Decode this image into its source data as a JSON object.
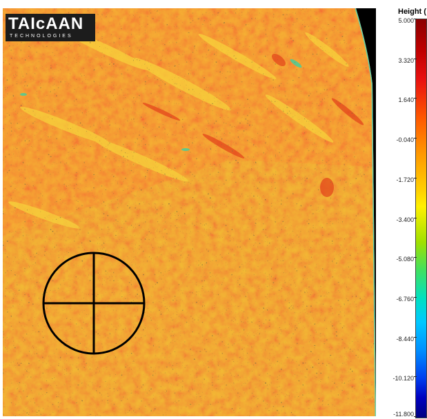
{
  "logo": {
    "brand": "TAIcAAN",
    "sub": "TECHNOLOGIES"
  },
  "legend": {
    "title": "Height (",
    "ticks": [
      "5.000",
      "3.320",
      "1.640",
      "-0.040",
      "-1.720",
      "-3.400",
      "-5.080",
      "-6.760",
      "-8.440",
      "-10.120",
      "-11.800"
    ]
  },
  "colors": {
    "surface_high": "#e83a10",
    "surface_mid": "#f6a31a",
    "surface_low": "#e9c03a",
    "background": "#000000",
    "crosshair": "#000000"
  }
}
